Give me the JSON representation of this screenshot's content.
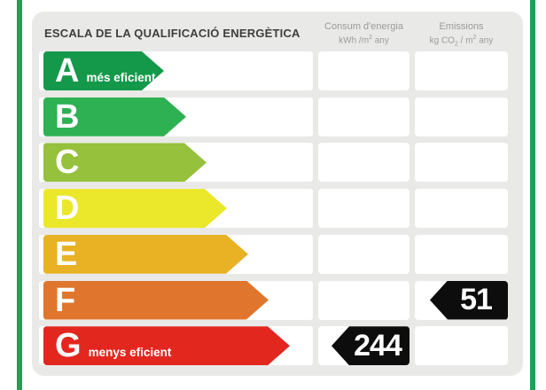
{
  "title": "ESCALA DE LA QUALIFICACIÓ ENERGÈTICA",
  "columns": [
    {
      "title": "Consum d'energia",
      "unit_main": "kWh /m",
      "unit_sup": "2",
      "unit_tail": " any"
    },
    {
      "title": "Emissions",
      "unit_main": "kg CO",
      "unit_sub": "2",
      "unit_mid": " / m",
      "unit_sup": "2",
      "unit_tail": " any"
    }
  ],
  "ratings": [
    {
      "letter": "A",
      "label": "més eficient",
      "color": "#14994a",
      "arrow_width": 136,
      "consum_value": "",
      "emissions_value": ""
    },
    {
      "letter": "B",
      "label": "",
      "color": "#2eb153",
      "arrow_width": 161,
      "consum_value": "",
      "emissions_value": ""
    },
    {
      "letter": "C",
      "label": "",
      "color": "#95c13d",
      "arrow_width": 184,
      "consum_value": "",
      "emissions_value": ""
    },
    {
      "letter": "D",
      "label": "",
      "color": "#ebe72b",
      "arrow_width": 207,
      "consum_value": "",
      "emissions_value": ""
    },
    {
      "letter": "E",
      "label": "",
      "color": "#e8b224",
      "arrow_width": 231,
      "consum_value": "",
      "emissions_value": ""
    },
    {
      "letter": "F",
      "label": "",
      "color": "#e0762e",
      "arrow_width": 254,
      "consum_value": "",
      "emissions_value": "51"
    },
    {
      "letter": "G",
      "label": "menys eficient",
      "color": "#e2271f",
      "arrow_width": 278,
      "consum_value": "244",
      "emissions_value": ""
    }
  ],
  "result": {
    "consum_rating": "G",
    "consum_value": "244",
    "emissions_rating": "F",
    "emissions_value": "51"
  },
  "colors": {
    "side_bar": "#1fa055",
    "panel_bg": "#e9e9e8",
    "tag_bg": "#0d0d0d",
    "title_text": "#3e3e3d",
    "header_text": "#9b9b9a"
  }
}
